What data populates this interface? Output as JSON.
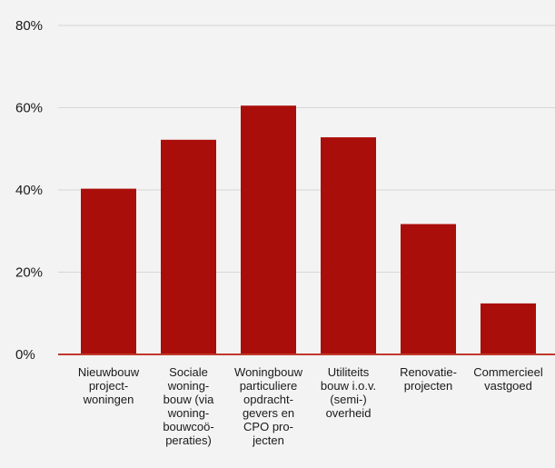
{
  "chart_data": {
    "type": "bar",
    "categories": [
      [
        "Nieuwbouw",
        "project-",
        "woningen"
      ],
      [
        "Sociale",
        "woning-",
        "bouw (via",
        "woning-",
        "bouwcoö-",
        "peraties)"
      ],
      [
        "Woningbouw",
        "particuliere",
        "opdracht-",
        "gevers en",
        "CPO pro-",
        "jecten"
      ],
      [
        "Utiliteits",
        "bouw i.o.v.",
        "(semi-)",
        "overheid"
      ],
      [
        "Renovatie-",
        "projecten"
      ],
      [
        "Commercieel",
        "vastgoed"
      ]
    ],
    "values": [
      40.3,
      52.2,
      60.5,
      52.8,
      31.7,
      12.4
    ],
    "ylim": [
      0,
      80
    ],
    "yticks": [
      0,
      20,
      40,
      60,
      80
    ],
    "ytick_labels": [
      "0%",
      "20%",
      "40%",
      "60%",
      "80%"
    ],
    "grid": true,
    "bar_color": "#aa0e0a",
    "axis_color": "#c0392b",
    "grid_color": "#d6d6d6",
    "title": "",
    "xlabel": "",
    "ylabel": ""
  }
}
